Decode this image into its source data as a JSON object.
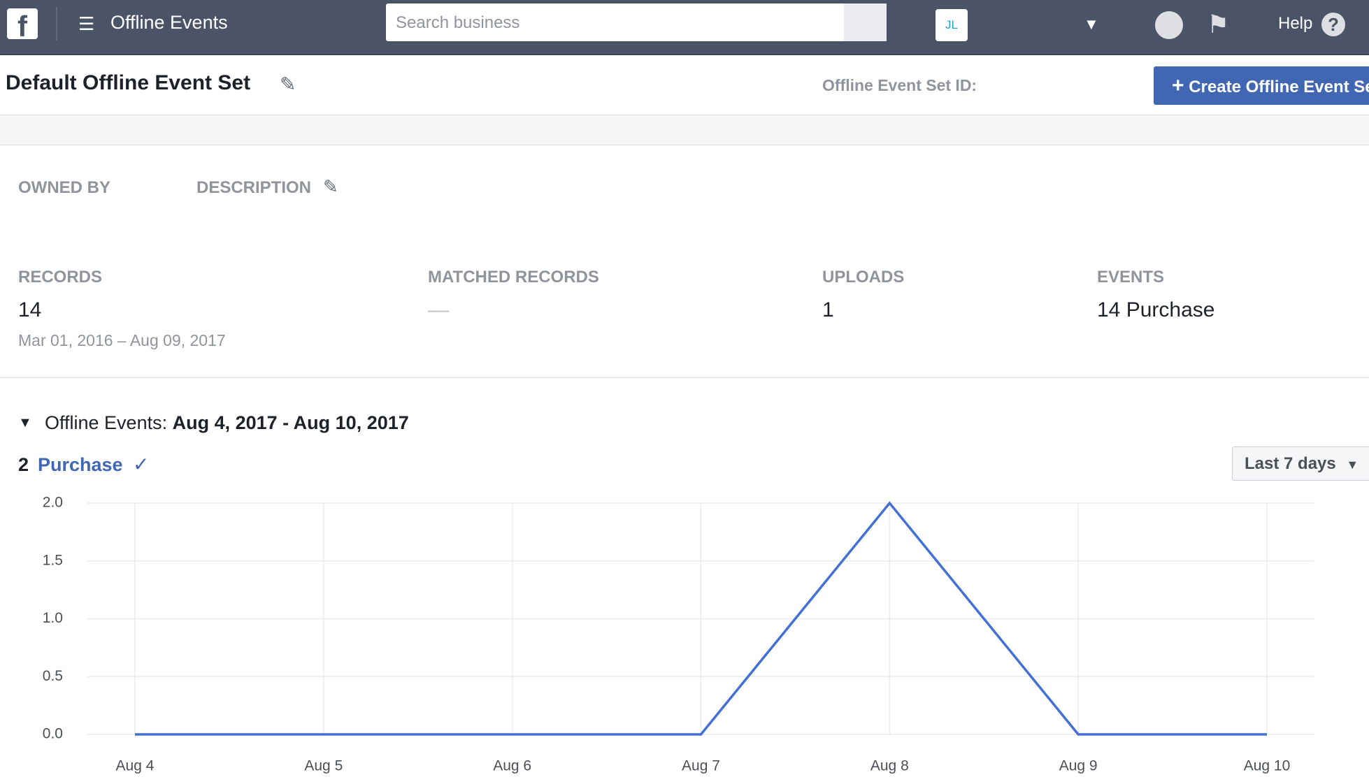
{
  "nav": {
    "title": "Offline Events",
    "search_placeholder": "Search business",
    "avatar": "JL",
    "help": "Help"
  },
  "header": {
    "title": "Default Offline Event Set",
    "id_label": "Offline Event Set ID:",
    "create_button": "Create Offline Event Set"
  },
  "info": {
    "owned_by": "OWNED BY",
    "description": "DESCRIPTION"
  },
  "stats": [
    {
      "label": "RECORDS",
      "value": "14",
      "sub": "Mar 01, 2016 – Aug 09, 2017"
    },
    {
      "label": "MATCHED RECORDS",
      "value": "—"
    },
    {
      "label": "UPLOADS",
      "value": "1"
    },
    {
      "label": "EVENTS",
      "value": "14 Purchase"
    }
  ],
  "section": {
    "title": "Offline Events:",
    "range": "Aug 4, 2017 - Aug 10, 2017",
    "count": "2",
    "event": "Purchase",
    "period": "Last 7 days"
  },
  "chart_data": {
    "type": "line",
    "categories": [
      "Aug 4",
      "Aug 5",
      "Aug 6",
      "Aug 7",
      "Aug 8",
      "Aug 9",
      "Aug 10"
    ],
    "values": [
      0,
      0,
      0,
      0,
      2,
      0,
      0
    ],
    "color": "#4370d4",
    "ylim": [
      0,
      2
    ],
    "yticks": [
      {
        "value": 0,
        "label": "0.0"
      },
      {
        "value": 0.5,
        "label": "0.5"
      },
      {
        "value": 1,
        "label": "1.0"
      },
      {
        "value": 1.5,
        "label": "1.5"
      },
      {
        "value": 2,
        "label": "2.0"
      }
    ],
    "grid": true
  }
}
